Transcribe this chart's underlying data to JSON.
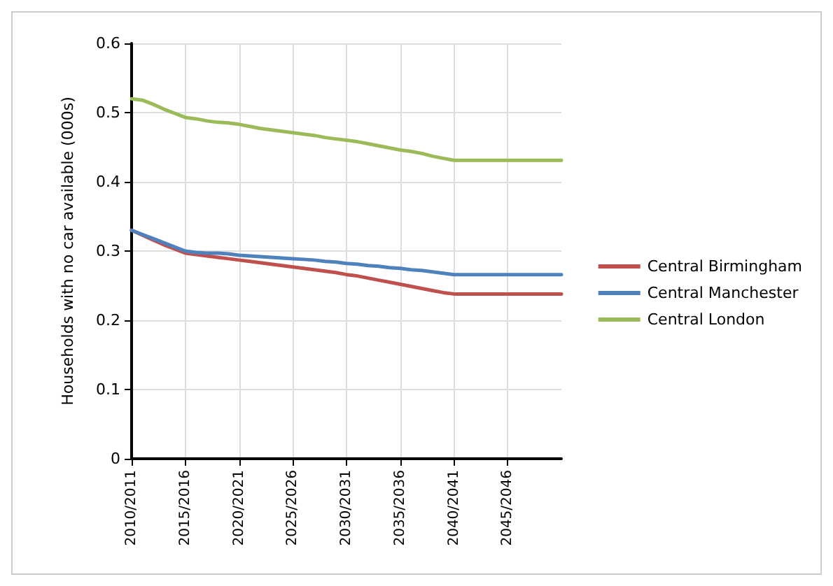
{
  "chart_data": {
    "type": "line",
    "ylabel": "Households with no car available (000s)",
    "categories": [
      "2010/2011",
      null,
      null,
      null,
      null,
      "2015/2016",
      null,
      null,
      null,
      null,
      "2020/2021",
      null,
      null,
      null,
      null,
      "2025/2026",
      null,
      null,
      null,
      null,
      "2030/2031",
      null,
      null,
      null,
      null,
      "2035/2036",
      null,
      null,
      null,
      null,
      "2040/2041",
      null,
      null,
      null,
      null,
      "2045/2046",
      null,
      null,
      null,
      null,
      null
    ],
    "series": [
      {
        "name": "Central Birmingham",
        "color": "#c0504d",
        "values": [
          0.33,
          0.323,
          0.316,
          0.309,
          0.303,
          0.297,
          0.295,
          0.293,
          0.291,
          0.289,
          0.287,
          0.285,
          0.283,
          0.281,
          0.279,
          0.277,
          0.275,
          0.273,
          0.271,
          0.269,
          0.266,
          0.264,
          0.261,
          0.258,
          0.255,
          0.252,
          0.249,
          0.246,
          0.243,
          0.24,
          0.238,
          0.238,
          0.238,
          0.238,
          0.238,
          0.238,
          0.238,
          0.238,
          0.238,
          0.238,
          0.238
        ]
      },
      {
        "name": "Central Manchester",
        "color": "#4f81bd",
        "values": [
          0.33,
          0.324,
          0.318,
          0.312,
          0.306,
          0.3,
          0.298,
          0.297,
          0.297,
          0.296,
          0.294,
          0.293,
          0.292,
          0.291,
          0.29,
          0.289,
          0.288,
          0.287,
          0.285,
          0.284,
          0.282,
          0.281,
          0.279,
          0.278,
          0.276,
          0.275,
          0.273,
          0.272,
          0.27,
          0.268,
          0.266,
          0.266,
          0.266,
          0.266,
          0.266,
          0.266,
          0.266,
          0.266,
          0.266,
          0.266,
          0.266
        ]
      },
      {
        "name": "Central London",
        "color": "#9bbb59",
        "values": [
          0.52,
          0.518,
          0.512,
          0.505,
          0.499,
          0.493,
          0.491,
          0.488,
          0.486,
          0.485,
          0.483,
          0.48,
          0.477,
          0.475,
          0.473,
          0.471,
          0.469,
          0.467,
          0.464,
          0.462,
          0.46,
          0.458,
          0.455,
          0.452,
          0.449,
          0.446,
          0.444,
          0.441,
          0.437,
          0.434,
          0.431,
          0.431,
          0.431,
          0.431,
          0.431,
          0.431,
          0.431,
          0.431,
          0.431,
          0.431,
          0.431
        ]
      }
    ],
    "ylim": [
      0,
      0.6
    ],
    "yticks": [
      0,
      0.1,
      0.2,
      0.3,
      0.4,
      0.5,
      0.6
    ],
    "grid": true,
    "legend": "right",
    "marker": "none",
    "line_style": "solid"
  }
}
